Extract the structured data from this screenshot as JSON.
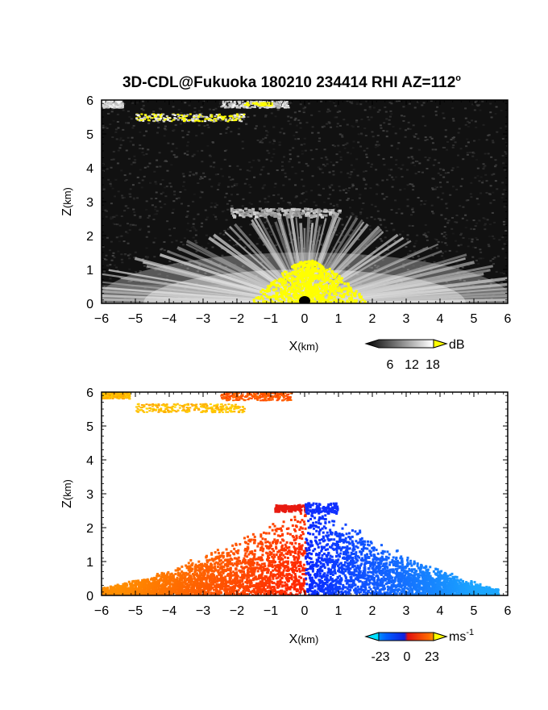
{
  "title_main": "3D-CDL@Fukuoka 180210 234414 RHI AZ=112",
  "title_sup": "o",
  "chart_data": [
    {
      "type": "heatmap",
      "name": "reflectivity",
      "xlabel_main": "X",
      "xlabel_unit": "(km)",
      "ylabel_main": "Z",
      "ylabel_unit": "(km)",
      "xlim": [
        -6,
        6
      ],
      "ylim": [
        0,
        6
      ],
      "x_ticks": [
        "-6",
        "-5",
        "-4",
        "-3",
        "-2",
        "-1",
        "0",
        "1",
        "2",
        "3",
        "4",
        "5",
        "6"
      ],
      "y_ticks": [
        "0",
        "1",
        "2",
        "3",
        "4",
        "5",
        "6"
      ],
      "colorbar": {
        "unit": "dB",
        "ticks": [
          "6",
          "12",
          "18"
        ],
        "range": [
          0,
          21
        ]
      },
      "background": "#111111",
      "features": [
        {
          "kind": "near-ground fan",
          "x_range": [
            -6,
            6
          ],
          "z_max": 2.8,
          "peak_db": 21
        },
        {
          "kind": "saturated core",
          "x_range": [
            -1.6,
            1.9
          ],
          "z_max": 1.3,
          "color": "#ffff00"
        },
        {
          "kind": "layer",
          "x_range": [
            -2.2,
            1.0
          ],
          "z_center": 2.7,
          "peak_db": 12
        },
        {
          "kind": "cloud layer",
          "x_range": [
            -5.0,
            -1.8
          ],
          "z_center": 5.5,
          "color": "#ffff00"
        },
        {
          "kind": "cloud layer",
          "x_range": [
            -6.0,
            -5.4
          ],
          "z_center": 5.9
        },
        {
          "kind": "cloud layer",
          "x_range": [
            -2.5,
            -0.5
          ],
          "z_center": 5.9
        }
      ]
    },
    {
      "type": "heatmap",
      "name": "doppler_velocity",
      "xlabel_main": "X",
      "xlabel_unit": "(km)",
      "ylabel_main": "Z",
      "ylabel_unit": "(km)",
      "xlim": [
        -6,
        6
      ],
      "ylim": [
        0,
        6
      ],
      "x_ticks": [
        "-6",
        "-5",
        "-4",
        "-3",
        "-2",
        "-1",
        "0",
        "1",
        "2",
        "3",
        "4",
        "5",
        "6"
      ],
      "y_ticks": [
        "0",
        "1",
        "2",
        "3",
        "4",
        "5",
        "6"
      ],
      "colorbar": {
        "unit_base": "ms",
        "unit_sup": "-1",
        "ticks": [
          "-23",
          "0",
          "23"
        ],
        "range": [
          -23,
          23
        ]
      },
      "background": "#ffffff",
      "regions": [
        {
          "sign": "positive",
          "x_range": [
            -6.0,
            0.0
          ],
          "z_max": 2.5,
          "velocity": 14
        },
        {
          "sign": "negative",
          "x_range": [
            0.0,
            5.7
          ],
          "z_max": 2.7,
          "velocity": -14
        },
        {
          "sign": "positive",
          "x_range": [
            -5.0,
            -1.8
          ],
          "z_center": 5.55,
          "velocity": 21
        },
        {
          "sign": "positive",
          "x_range": [
            -6.0,
            -5.2
          ],
          "z_center": 5.95,
          "velocity": 22
        },
        {
          "sign": "positive",
          "x_range": [
            -2.5,
            -0.4
          ],
          "z_center": 5.9,
          "velocity": 9
        }
      ]
    }
  ]
}
